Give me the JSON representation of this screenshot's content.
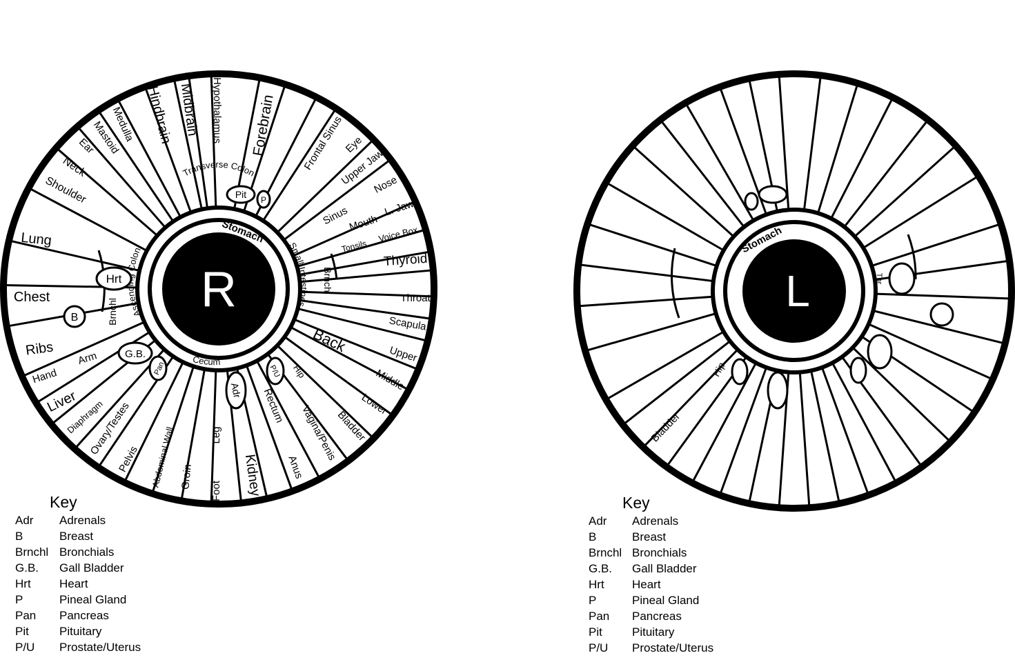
{
  "right_iris": {
    "center_letter": "R",
    "ring_labels": {
      "stomach": "Stomach",
      "transverse_colon": "Transverse Colon",
      "small_intestines": "Small Intestines",
      "cecum": "Cecum",
      "ascending_colon": "Ascending Colon"
    },
    "zone_labels": {
      "hypothalamus": "Hypothalamus",
      "midbrain": "Midbrain",
      "hindbrain": "Hindbrain",
      "medulla": "Medulla",
      "mastoid": "Mastoid",
      "ear": "Ear",
      "neck": "Neck",
      "shoulder": "Shoulder",
      "lung": "Lung",
      "chest": "Chest",
      "ribs": "Ribs",
      "hand": "Hand",
      "arm": "Arm",
      "liver": "Liver",
      "diaphragm": "Diaphragm",
      "ovary_testes": "Ovary/Testes",
      "pelvis": "Pelvis",
      "abdominal_wall": "Abdominal Wall",
      "groin": "Groin",
      "foot": "Foot",
      "leg": "Leg",
      "kidney": "Kidney",
      "rectum": "Rectum",
      "anus": "Anus",
      "vagina_penis": "Vagina/Penis",
      "bladder": "Bladder",
      "lower": "Lower",
      "middle": "Middle",
      "upper": "Upper",
      "back": "Back",
      "scapula": "Scapula",
      "throat": "Throat",
      "thyroid": "Thyroid",
      "tonsils": "Tonsils",
      "voice_box": "Voice Box",
      "mouth": "Mouth",
      "l_jaw": "L. Jaw",
      "sinus": "Sinus",
      "nose": "Nose",
      "upper_jaw": "Upper Jaw",
      "eye": "Eye",
      "frontal_sinus": "Frontal Sinus",
      "forebrain": "Forebrain",
      "brnchl": "Brnchl",
      "brnchl_left": "Brnchl",
      "hip": "Hip"
    },
    "badges": {
      "pit": "Pit",
      "p": "P",
      "hrt": "Hrt",
      "b": "B",
      "gb": "G.B.",
      "pan": "Pan",
      "adr": "Adr",
      "pu": "P/U"
    }
  },
  "left_iris": {
    "center_letter": "L",
    "ring_labels": {
      "stomach": "Stomach"
    },
    "zone_labels": {
      "hip": "Hip",
      "bladder": "Bladder",
      "partial_label": "Thr"
    }
  },
  "key_right": {
    "title": "Key",
    "items": [
      {
        "abbr": "Adr",
        "full": "Adrenals"
      },
      {
        "abbr": "B",
        "full": "Breast"
      },
      {
        "abbr": "Brnchl",
        "full": "Bronchials"
      },
      {
        "abbr": "G.B.",
        "full": "Gall Bladder"
      },
      {
        "abbr": "Hrt",
        "full": "Heart"
      },
      {
        "abbr": "P",
        "full": "Pineal Gland"
      },
      {
        "abbr": "Pan",
        "full": "Pancreas"
      },
      {
        "abbr": "Pit",
        "full": "Pituitary"
      },
      {
        "abbr": "P/U",
        "full": "Prostate/Uterus"
      }
    ]
  },
  "key_left": {
    "title": "Key",
    "items": [
      {
        "abbr": "Adr",
        "full": "Adrenals"
      },
      {
        "abbr": "B",
        "full": "Breast"
      },
      {
        "abbr": "Brnchl",
        "full": "Bronchials"
      },
      {
        "abbr": "G.B.",
        "full": "Gall Bladder"
      },
      {
        "abbr": "Hrt",
        "full": "Heart"
      },
      {
        "abbr": "P",
        "full": "Pineal Gland"
      },
      {
        "abbr": "Pan",
        "full": "Pancreas"
      },
      {
        "abbr": "Pit",
        "full": "Pituitary"
      },
      {
        "abbr": "P/U",
        "full": "Prostate/Uterus"
      }
    ]
  }
}
